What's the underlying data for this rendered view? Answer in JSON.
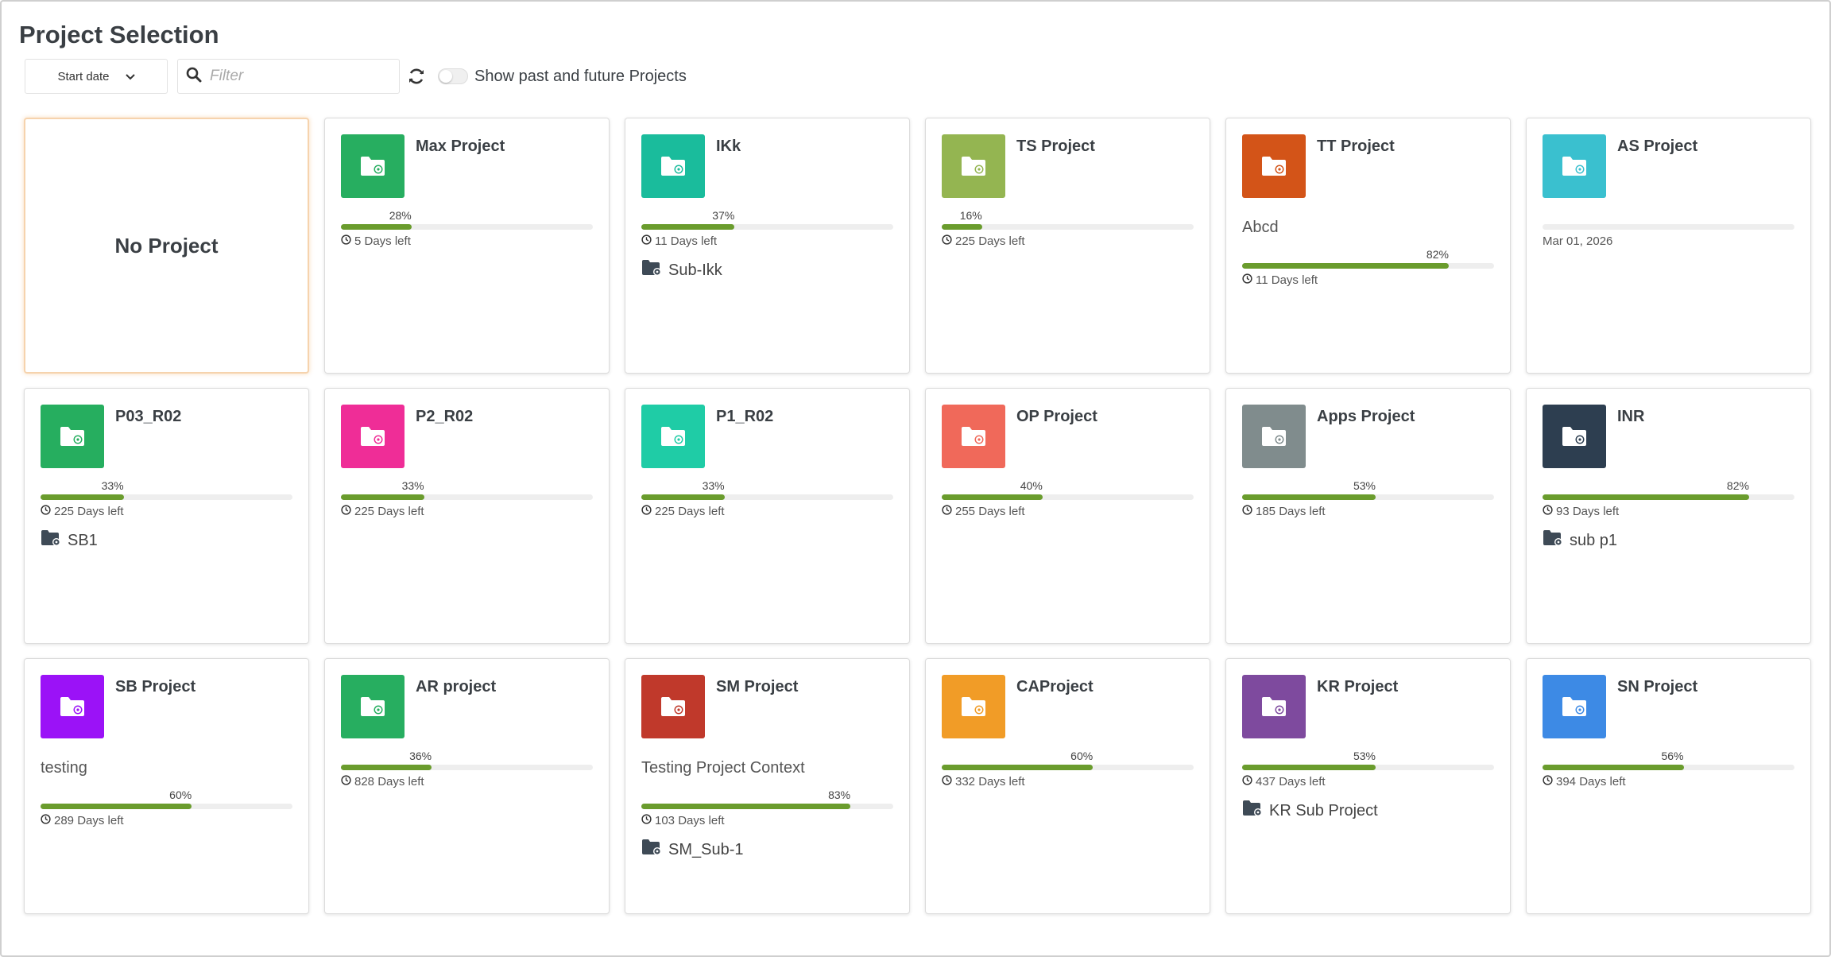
{
  "page": {
    "title": "Project Selection"
  },
  "toolbar": {
    "sort_label": "Start date",
    "filter_placeholder": "Filter",
    "toggle_label": "Show past and future Projects"
  },
  "no_project_label": "No Project",
  "projects": [
    {
      "name": "Max Project",
      "color": "#27ae60",
      "context": "",
      "progress": 28,
      "progress_label": "28%",
      "days": "5 Days left",
      "date": "",
      "sub": ""
    },
    {
      "name": "IKk",
      "color": "#1abc9c",
      "context": "",
      "progress": 37,
      "progress_label": "37%",
      "days": "11 Days left",
      "date": "",
      "sub": "Sub-Ikk"
    },
    {
      "name": "TS Project",
      "color": "#94b551",
      "context": "",
      "progress": 16,
      "progress_label": "16%",
      "days": "225 Days left",
      "date": "",
      "sub": ""
    },
    {
      "name": "TT Project",
      "color": "#d35418",
      "context": "Abcd",
      "progress": 82,
      "progress_label": "82%",
      "days": "11 Days left",
      "date": "",
      "sub": ""
    },
    {
      "name": "AS Project",
      "color": "#3ac0cf",
      "context": "",
      "progress": 0,
      "progress_label": "",
      "days": "",
      "date": "Mar 01, 2026",
      "sub": ""
    },
    {
      "name": "P03_R02",
      "color": "#26ae5f",
      "context": "",
      "progress": 33,
      "progress_label": "33%",
      "days": "225 Days left",
      "date": "",
      "sub": "SB1"
    },
    {
      "name": "P2_R02",
      "color": "#ef2d97",
      "context": "",
      "progress": 33,
      "progress_label": "33%",
      "days": "225 Days left",
      "date": "",
      "sub": ""
    },
    {
      "name": "P1_R02",
      "color": "#1fcca6",
      "context": "",
      "progress": 33,
      "progress_label": "33%",
      "days": "225 Days left",
      "date": "",
      "sub": ""
    },
    {
      "name": "OP Project",
      "color": "#f0695a",
      "context": "",
      "progress": 40,
      "progress_label": "40%",
      "days": "255 Days left",
      "date": "",
      "sub": ""
    },
    {
      "name": "Apps Project",
      "color": "#808c8d",
      "context": "",
      "progress": 53,
      "progress_label": "53%",
      "days": "185 Days left",
      "date": "",
      "sub": ""
    },
    {
      "name": "INR",
      "color": "#2d3e50",
      "context": "",
      "progress": 82,
      "progress_label": "82%",
      "days": "93 Days left",
      "date": "",
      "sub": "sub p1"
    },
    {
      "name": "SB Project",
      "color": "#9b12f7",
      "context": "testing",
      "progress": 60,
      "progress_label": "60%",
      "days": "289 Days left",
      "date": "",
      "sub": ""
    },
    {
      "name": "AR project",
      "color": "#27ae60",
      "context": "",
      "progress": 36,
      "progress_label": "36%",
      "days": "828 Days left",
      "date": "",
      "sub": ""
    },
    {
      "name": "SM Project",
      "color": "#c0392b",
      "context": "Testing Project Context",
      "progress": 83,
      "progress_label": "83%",
      "days": "103 Days left",
      "date": "",
      "sub": "SM_Sub-1"
    },
    {
      "name": "CAProject",
      "color": "#f19c27",
      "context": "",
      "progress": 60,
      "progress_label": "60%",
      "days": "332 Days left",
      "date": "",
      "sub": ""
    },
    {
      "name": "KR Project",
      "color": "#7e4a9e",
      "context": "",
      "progress": 53,
      "progress_label": "53%",
      "days": "437 Days left",
      "date": "",
      "sub": "KR Sub Project"
    },
    {
      "name": "SN Project",
      "color": "#3d8ae5",
      "context": "",
      "progress": 56,
      "progress_label": "56%",
      "days": "394 Days left",
      "date": "",
      "sub": ""
    }
  ]
}
